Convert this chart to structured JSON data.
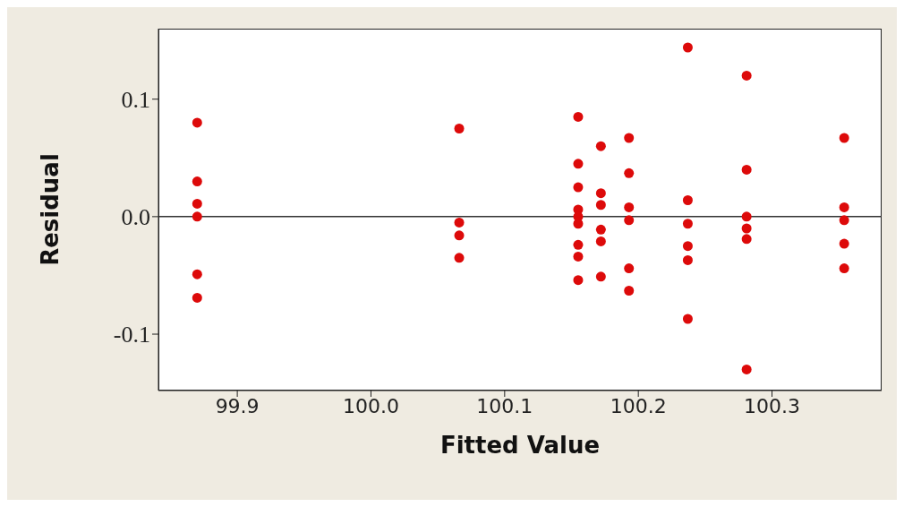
{
  "chart_data": {
    "type": "scatter",
    "xlabel": "Fitted Value",
    "ylabel": "Residual",
    "x": [
      99.87,
      99.87,
      99.87,
      99.87,
      99.87,
      99.87,
      100.066,
      100.066,
      100.066,
      100.066,
      100.155,
      100.155,
      100.155,
      100.155,
      100.155,
      100.155,
      100.155,
      100.155,
      100.155,
      100.172,
      100.172,
      100.172,
      100.172,
      100.172,
      100.172,
      100.193,
      100.193,
      100.193,
      100.193,
      100.193,
      100.193,
      100.237,
      100.237,
      100.237,
      100.237,
      100.237,
      100.237,
      100.281,
      100.281,
      100.281,
      100.281,
      100.281,
      100.281,
      100.354,
      100.354,
      100.354,
      100.354,
      100.354
    ],
    "values": [
      0.08,
      0.03,
      0.011,
      0.0,
      -0.049,
      -0.069,
      0.075,
      -0.005,
      -0.016,
      -0.035,
      0.085,
      0.045,
      0.025,
      0.006,
      0.0,
      -0.006,
      -0.024,
      -0.034,
      -0.054,
      0.06,
      0.02,
      0.01,
      -0.011,
      -0.021,
      -0.051,
      0.067,
      0.037,
      0.008,
      -0.003,
      -0.044,
      -0.063,
      0.144,
      0.014,
      -0.006,
      -0.025,
      -0.037,
      -0.087,
      0.12,
      0.04,
      0.0,
      -0.01,
      -0.019,
      -0.13,
      0.067,
      0.008,
      -0.003,
      -0.023,
      -0.044
    ],
    "color": "#dd0a0a",
    "marker": "circle",
    "xlim": [
      99.841,
      100.382
    ],
    "xticks": [
      99.9,
      {
        "value": 100.0,
        "label": "100.0"
      },
      100.1,
      100.2,
      100.3
    ],
    "ylim": [
      -0.148,
      0.16
    ],
    "yticks": [
      {
        "value": -0.1,
        "label": "-0.1"
      },
      {
        "value": 0.0,
        "label": "0.0"
      },
      0.1
    ],
    "ref_lines": [
      {
        "axis": "y",
        "value": 0,
        "color": "#333333"
      }
    ],
    "grid": false,
    "legend": false
  }
}
